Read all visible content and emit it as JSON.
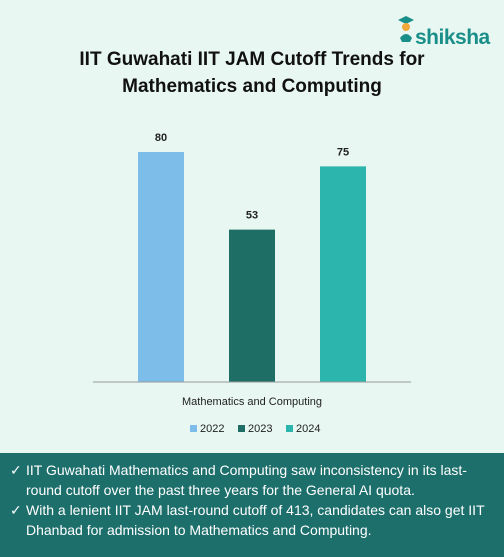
{
  "brand": {
    "logo_text": "shiksha"
  },
  "chart_data": {
    "type": "bar",
    "title": "IIT Guwahati IIT JAM Cutoff Trends for Mathematics and Computing",
    "title_lines": [
      "IIT Guwahati IIT JAM Cutoff Trends for",
      "Mathematics and Computing"
    ],
    "categories": [
      "Mathematics and Computing"
    ],
    "series": [
      {
        "name": "2022",
        "values": [
          80
        ],
        "color": "#7dbdea"
      },
      {
        "name": "2023",
        "values": [
          53
        ],
        "color": "#1e6e66"
      },
      {
        "name": "2024",
        "values": [
          75
        ],
        "color": "#2bb5ad"
      }
    ],
    "ylim": [
      0,
      92
    ],
    "grid": false,
    "legend_position": "bottom"
  },
  "footer": {
    "bullets": [
      "IIT Guwahati Mathematics and Computing saw inconsistency in its last-round cutoff over the past three years for the General AI quota.",
      "With a lenient IIT JAM last-round cutoff of 413, candidates can also get IIT Dhanbad for admission to Mathematics and Computing."
    ]
  }
}
